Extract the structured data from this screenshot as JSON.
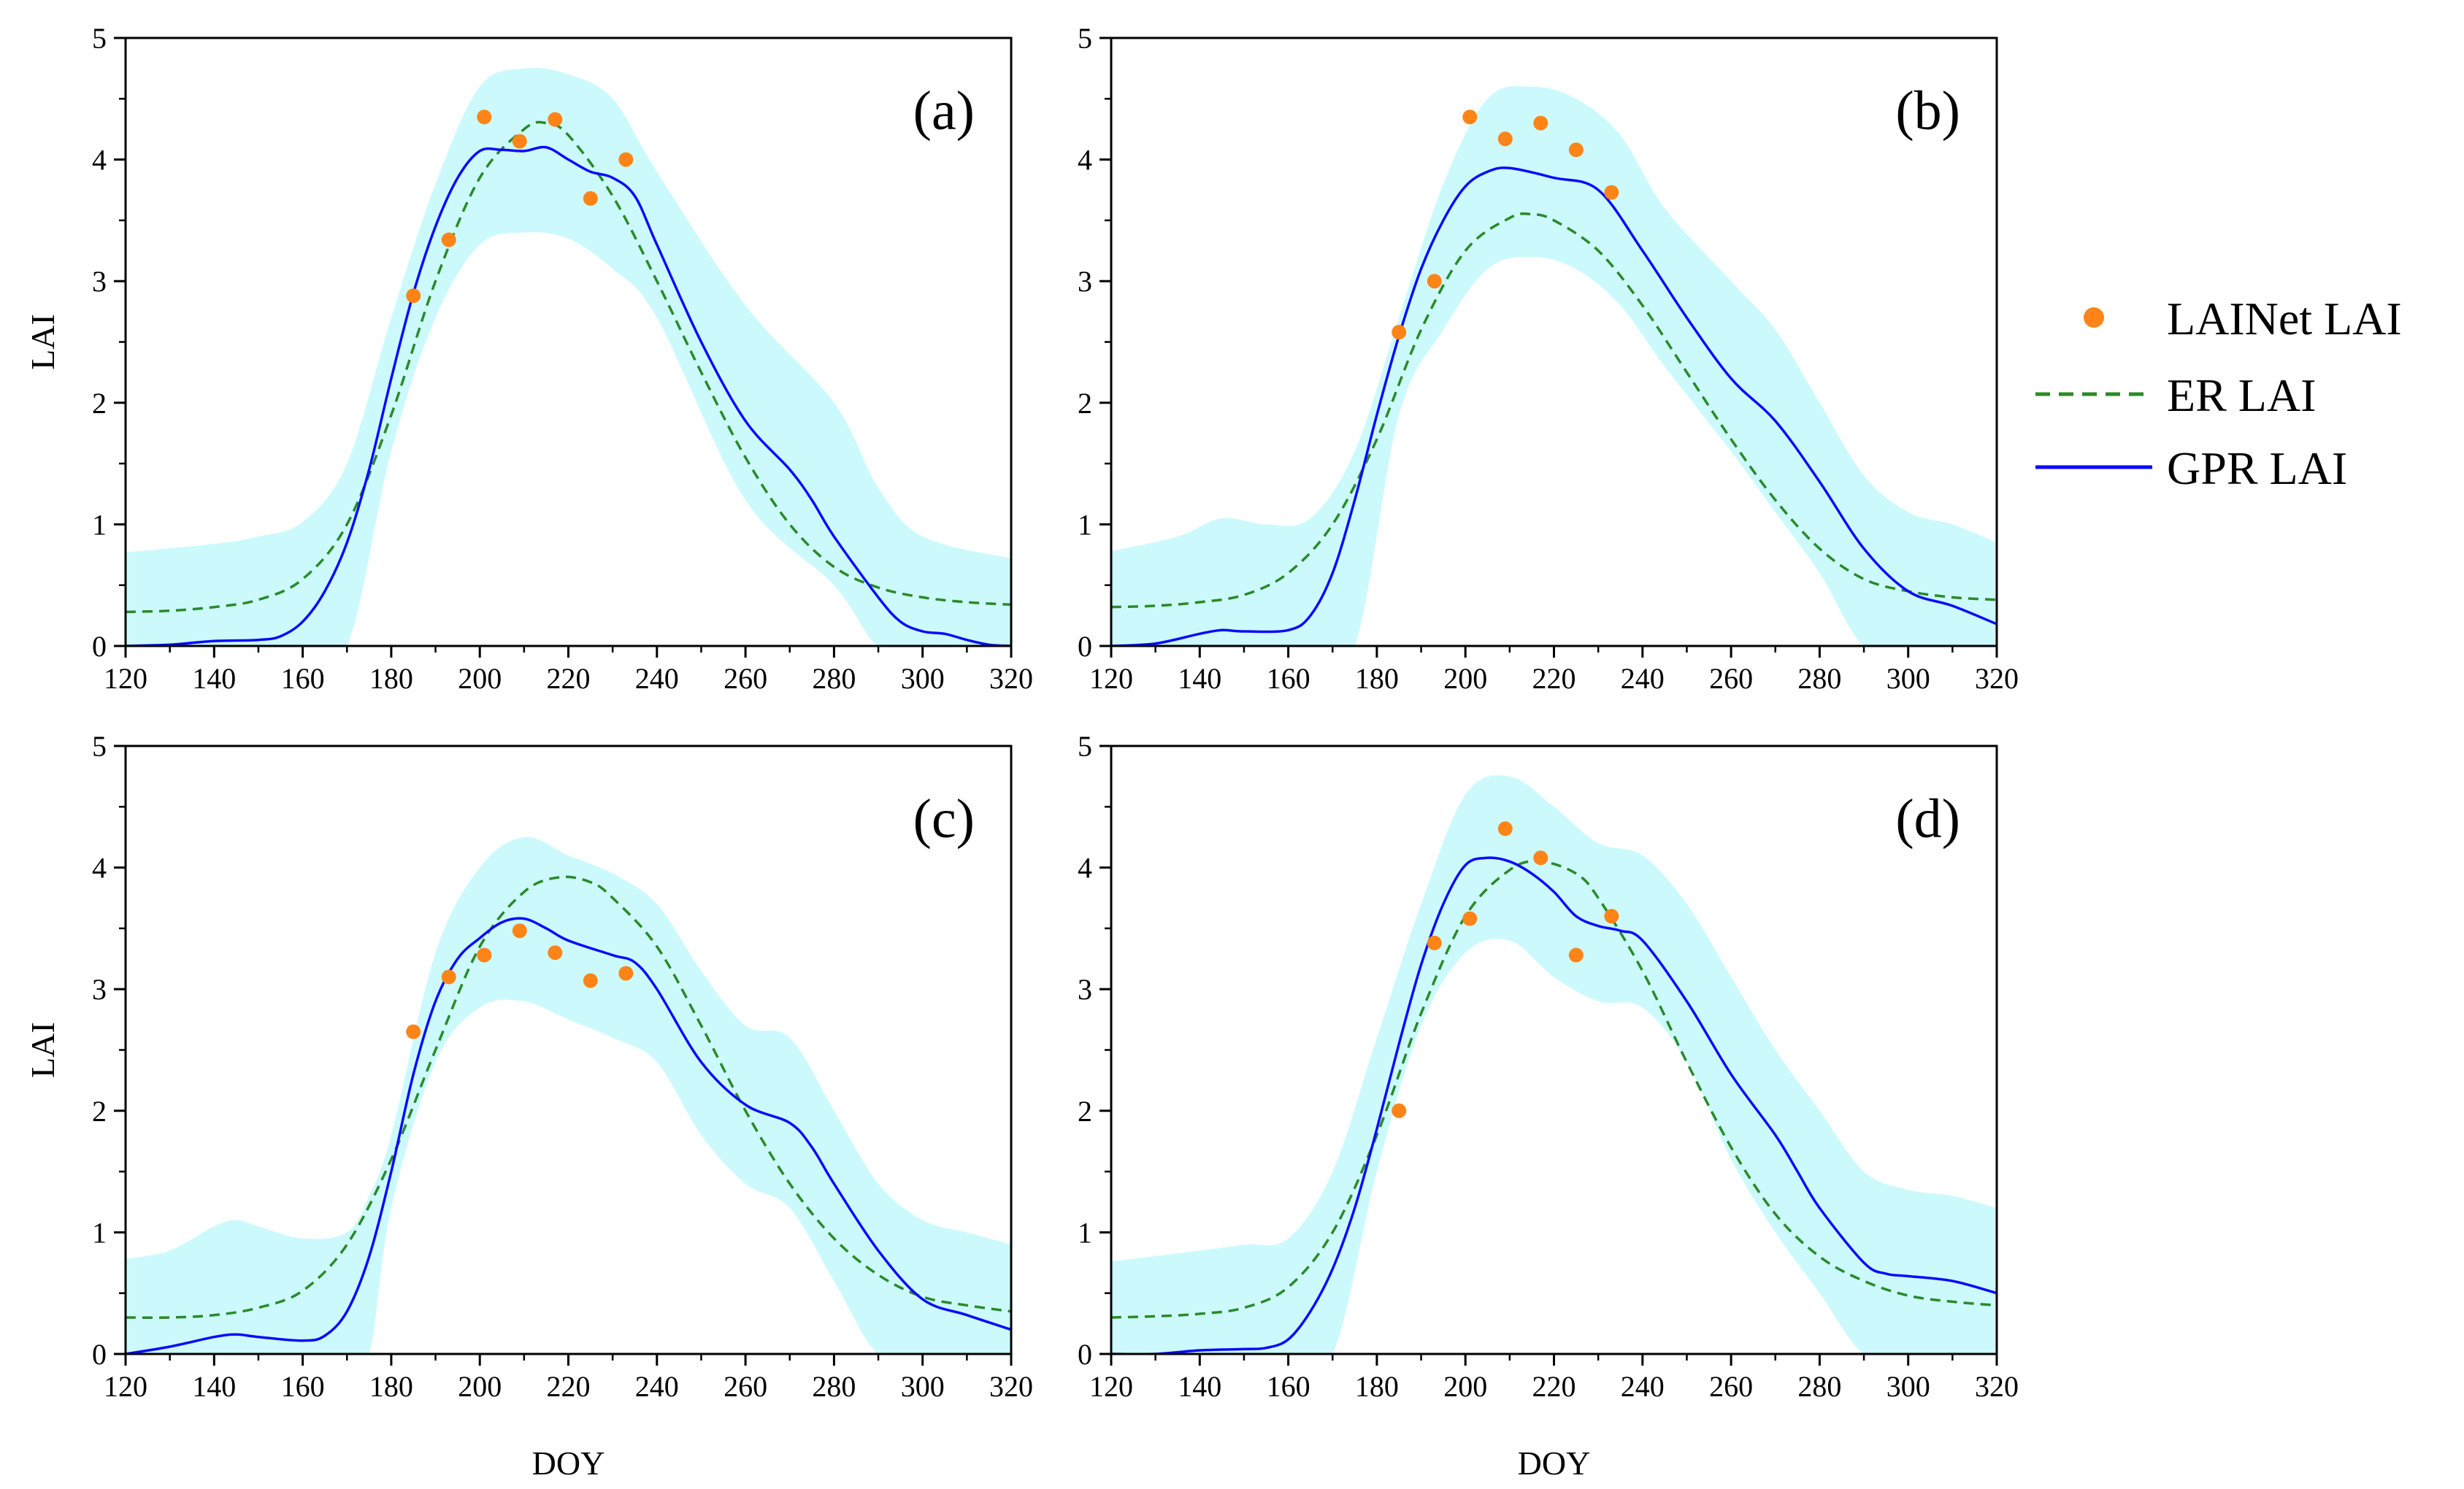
{
  "colors": {
    "band": "#ccfafc",
    "gpr": "#0a0aff",
    "er": "#2a8a2a",
    "lainet": "#ff8418",
    "axis": "#000000"
  },
  "legend": {
    "lainet": "LAINet LAI",
    "er": "ER LAI",
    "gpr": "GPR LAI"
  },
  "chart_data": [
    {
      "type": "line",
      "panel": "(a)",
      "xlabel": "",
      "ylabel": "LAI",
      "xlim": [
        120,
        320
      ],
      "ylim": [
        0,
        5
      ],
      "xticks": [
        120,
        140,
        160,
        180,
        200,
        220,
        240,
        260,
        280,
        300,
        320
      ],
      "yticks": [
        0,
        1,
        2,
        3,
        4,
        5
      ],
      "series": [
        {
          "name": "LAINet LAI",
          "kind": "scatter",
          "x": [
            185,
            193,
            201,
            209,
            217,
            225,
            233
          ],
          "y": [
            2.88,
            3.34,
            4.35,
            4.15,
            4.33,
            3.68,
            4.0
          ]
        },
        {
          "name": "ER LAI",
          "kind": "dashed",
          "x": [
            120,
            130,
            140,
            150,
            160,
            170,
            180,
            190,
            200,
            210,
            215,
            220,
            230,
            240,
            250,
            260,
            270,
            280,
            290,
            300,
            310,
            320
          ],
          "y": [
            0.28,
            0.29,
            0.32,
            0.38,
            0.55,
            1.0,
            1.9,
            3.0,
            3.85,
            4.25,
            4.3,
            4.2,
            3.7,
            3.0,
            2.25,
            1.55,
            1.0,
            0.65,
            0.48,
            0.4,
            0.36,
            0.34
          ]
        },
        {
          "name": "GPR LAI",
          "kind": "solid",
          "x": [
            120,
            130,
            140,
            150,
            155,
            160,
            165,
            170,
            175,
            180,
            185,
            190,
            195,
            200,
            205,
            210,
            215,
            220,
            225,
            230,
            235,
            240,
            250,
            260,
            270,
            275,
            280,
            290,
            295,
            300,
            305,
            310,
            315,
            320
          ],
          "y": [
            0.0,
            0.01,
            0.04,
            0.05,
            0.08,
            0.2,
            0.45,
            0.85,
            1.45,
            2.2,
            2.9,
            3.45,
            3.85,
            4.07,
            4.08,
            4.07,
            4.1,
            4.0,
            3.9,
            3.85,
            3.7,
            3.3,
            2.5,
            1.85,
            1.45,
            1.2,
            0.9,
            0.4,
            0.2,
            0.12,
            0.1,
            0.05,
            0.01,
            0.0
          ]
        },
        {
          "name": "GPR uncertainty",
          "kind": "band",
          "x": [
            120,
            140,
            150,
            160,
            170,
            180,
            190,
            200,
            210,
            220,
            230,
            240,
            260,
            280,
            290,
            300,
            320
          ],
          "upper": [
            0.77,
            0.84,
            0.9,
            1.02,
            1.5,
            2.7,
            3.8,
            4.6,
            4.75,
            4.7,
            4.5,
            3.9,
            2.8,
            2.0,
            1.3,
            0.9,
            0.72
          ],
          "lower": [
            0.0,
            0.0,
            0.0,
            0.0,
            0.0,
            1.6,
            2.7,
            3.3,
            3.4,
            3.35,
            3.1,
            2.7,
            1.2,
            0.5,
            0.0,
            0.0,
            0.0
          ]
        }
      ]
    },
    {
      "type": "line",
      "panel": "(b)",
      "xlabel": "",
      "ylabel": "",
      "xlim": [
        120,
        320
      ],
      "ylim": [
        0,
        5
      ],
      "xticks": [
        120,
        140,
        160,
        180,
        200,
        220,
        240,
        260,
        280,
        300,
        320
      ],
      "yticks": [
        0,
        1,
        2,
        3,
        4,
        5
      ],
      "series": [
        {
          "name": "LAINet LAI",
          "kind": "scatter",
          "x": [
            185,
            193,
            201,
            209,
            217,
            225,
            233
          ],
          "y": [
            2.58,
            3.0,
            4.35,
            4.17,
            4.3,
            4.08,
            3.73
          ]
        },
        {
          "name": "ER LAI",
          "kind": "dashed",
          "x": [
            120,
            130,
            140,
            150,
            160,
            170,
            180,
            190,
            200,
            210,
            215,
            220,
            230,
            240,
            250,
            260,
            270,
            280,
            290,
            300,
            310,
            320
          ],
          "y": [
            0.32,
            0.33,
            0.36,
            0.42,
            0.6,
            1.0,
            1.7,
            2.6,
            3.25,
            3.52,
            3.55,
            3.5,
            3.25,
            2.8,
            2.25,
            1.7,
            1.2,
            0.8,
            0.55,
            0.45,
            0.4,
            0.38
          ]
        },
        {
          "name": "GPR LAI",
          "kind": "solid",
          "x": [
            120,
            130,
            140,
            145,
            150,
            160,
            165,
            170,
            175,
            180,
            185,
            190,
            195,
            200,
            205,
            210,
            220,
            230,
            240,
            250,
            260,
            270,
            280,
            290,
            300,
            310,
            320
          ],
          "y": [
            0.0,
            0.02,
            0.1,
            0.13,
            0.12,
            0.13,
            0.25,
            0.6,
            1.2,
            1.9,
            2.55,
            3.1,
            3.5,
            3.78,
            3.9,
            3.93,
            3.85,
            3.75,
            3.25,
            2.7,
            2.2,
            1.85,
            1.35,
            0.8,
            0.45,
            0.33,
            0.18
          ]
        },
        {
          "name": "GPR uncertainty",
          "kind": "band",
          "x": [
            120,
            135,
            145,
            155,
            165,
            175,
            185,
            195,
            205,
            215,
            225,
            235,
            245,
            260,
            270,
            280,
            290,
            300,
            310,
            320
          ],
          "upper": [
            0.78,
            0.9,
            1.05,
            1.0,
            1.05,
            1.6,
            2.7,
            3.8,
            4.5,
            4.6,
            4.5,
            4.2,
            3.6,
            3.0,
            2.6,
            2.0,
            1.4,
            1.1,
            1.0,
            0.85
          ],
          "lower": [
            0.0,
            0.0,
            0.0,
            0.0,
            0.0,
            0.0,
            1.9,
            2.6,
            3.1,
            3.2,
            3.1,
            2.8,
            2.3,
            1.6,
            1.1,
            0.6,
            0.0,
            0.0,
            0.0,
            0.0
          ]
        }
      ]
    },
    {
      "type": "line",
      "panel": "(c)",
      "xlabel": "DOY",
      "ylabel": "LAI",
      "xlim": [
        120,
        320
      ],
      "ylim": [
        0,
        5
      ],
      "xticks": [
        120,
        140,
        160,
        180,
        200,
        220,
        240,
        260,
        280,
        300,
        320
      ],
      "yticks": [
        0,
        1,
        2,
        3,
        4,
        5
      ],
      "series": [
        {
          "name": "LAINet LAI",
          "kind": "scatter",
          "x": [
            185,
            193,
            201,
            209,
            217,
            225,
            233
          ],
          "y": [
            2.65,
            3.1,
            3.28,
            3.48,
            3.3,
            3.07,
            3.13
          ]
        },
        {
          "name": "ER LAI",
          "kind": "dashed",
          "x": [
            120,
            130,
            140,
            150,
            160,
            170,
            180,
            190,
            200,
            210,
            218,
            225,
            230,
            240,
            250,
            260,
            270,
            280,
            290,
            300,
            310,
            320
          ],
          "y": [
            0.3,
            0.3,
            0.32,
            0.38,
            0.52,
            0.9,
            1.6,
            2.5,
            3.35,
            3.8,
            3.92,
            3.88,
            3.75,
            3.35,
            2.7,
            2.0,
            1.4,
            0.95,
            0.65,
            0.47,
            0.4,
            0.35
          ]
        },
        {
          "name": "GPR LAI",
          "kind": "solid",
          "x": [
            120,
            130,
            140,
            145,
            150,
            160,
            165,
            170,
            175,
            180,
            185,
            190,
            195,
            200,
            205,
            210,
            215,
            220,
            230,
            235,
            240,
            250,
            260,
            270,
            275,
            280,
            290,
            300,
            310,
            320
          ],
          "y": [
            0.0,
            0.06,
            0.14,
            0.16,
            0.14,
            0.11,
            0.15,
            0.35,
            0.8,
            1.5,
            2.3,
            2.9,
            3.25,
            3.42,
            3.55,
            3.58,
            3.5,
            3.4,
            3.28,
            3.22,
            3.0,
            2.4,
            2.05,
            1.9,
            1.7,
            1.4,
            0.85,
            0.45,
            0.32,
            0.2
          ]
        },
        {
          "name": "GPR uncertainty",
          "kind": "band",
          "x": [
            120,
            130,
            140,
            145,
            150,
            160,
            170,
            175,
            180,
            190,
            200,
            210,
            220,
            230,
            240,
            250,
            260,
            270,
            280,
            290,
            300,
            310,
            320
          ],
          "upper": [
            0.78,
            0.85,
            1.05,
            1.1,
            1.05,
            0.95,
            1.0,
            1.3,
            1.8,
            3.3,
            4.0,
            4.25,
            4.1,
            3.95,
            3.7,
            3.15,
            2.7,
            2.6,
            2.0,
            1.4,
            1.1,
            1.0,
            0.9
          ],
          "lower": [
            0.0,
            0.0,
            0.0,
            0.0,
            0.0,
            0.0,
            0.0,
            0.0,
            1.2,
            2.4,
            2.85,
            2.9,
            2.75,
            2.6,
            2.4,
            1.8,
            1.4,
            1.2,
            0.6,
            0.0,
            0.0,
            0.0,
            0.0
          ]
        }
      ]
    },
    {
      "type": "line",
      "panel": "(d)",
      "xlabel": "DOY",
      "ylabel": "",
      "xlim": [
        120,
        320
      ],
      "ylim": [
        0,
        5
      ],
      "xticks": [
        120,
        140,
        160,
        180,
        200,
        220,
        240,
        260,
        280,
        300,
        320
      ],
      "yticks": [
        0,
        1,
        2,
        3,
        4,
        5
      ],
      "series": [
        {
          "name": "LAINet LAI",
          "kind": "scatter",
          "x": [
            185,
            193,
            201,
            209,
            217,
            225,
            233
          ],
          "y": [
            2.0,
            3.38,
            3.58,
            4.32,
            4.08,
            3.28,
            3.6
          ]
        },
        {
          "name": "ER LAI",
          "kind": "dashed",
          "x": [
            120,
            130,
            140,
            150,
            160,
            170,
            180,
            190,
            200,
            210,
            217,
            225,
            230,
            240,
            250,
            260,
            270,
            280,
            290,
            300,
            310,
            320
          ],
          "y": [
            0.3,
            0.31,
            0.33,
            0.38,
            0.55,
            1.0,
            1.8,
            2.8,
            3.6,
            3.98,
            4.05,
            3.95,
            3.75,
            3.15,
            2.4,
            1.7,
            1.15,
            0.8,
            0.6,
            0.48,
            0.43,
            0.4
          ]
        },
        {
          "name": "GPR LAI",
          "kind": "solid",
          "x": [
            120,
            130,
            140,
            150,
            155,
            160,
            165,
            170,
            175,
            180,
            185,
            190,
            195,
            200,
            205,
            210,
            215,
            220,
            225,
            230,
            235,
            240,
            250,
            260,
            270,
            275,
            280,
            290,
            295,
            300,
            310,
            320
          ],
          "y": [
            0.0,
            0.0,
            0.03,
            0.04,
            0.05,
            0.12,
            0.35,
            0.7,
            1.2,
            1.85,
            2.55,
            3.2,
            3.7,
            4.02,
            4.08,
            4.05,
            3.95,
            3.8,
            3.6,
            3.52,
            3.48,
            3.4,
            2.9,
            2.3,
            1.8,
            1.5,
            1.2,
            0.75,
            0.66,
            0.64,
            0.6,
            0.5
          ]
        },
        {
          "name": "GPR uncertainty",
          "kind": "band",
          "x": [
            120,
            140,
            150,
            160,
            170,
            180,
            190,
            200,
            210,
            220,
            230,
            240,
            250,
            260,
            270,
            280,
            290,
            300,
            310,
            320
          ],
          "upper": [
            0.76,
            0.85,
            0.9,
            0.95,
            1.5,
            2.6,
            3.7,
            4.6,
            4.75,
            4.5,
            4.2,
            4.1,
            3.7,
            3.1,
            2.5,
            2.0,
            1.5,
            1.35,
            1.3,
            1.2
          ],
          "lower": [
            0.0,
            0.0,
            0.0,
            0.0,
            0.0,
            1.5,
            2.7,
            3.3,
            3.4,
            3.1,
            2.9,
            2.85,
            2.4,
            1.6,
            1.0,
            0.5,
            0.0,
            0.0,
            0.0,
            0.0
          ]
        }
      ]
    }
  ]
}
